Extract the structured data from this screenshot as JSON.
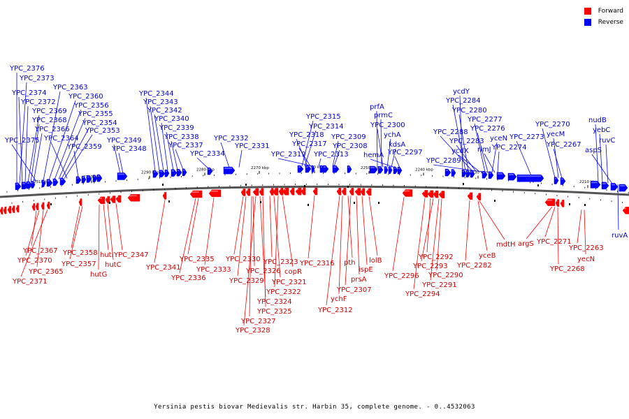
{
  "legend": {
    "forward_label": "Forward",
    "forward_color": "#ff0000",
    "reverse_label": "Reverse",
    "reverse_color": "#0000ff"
  },
  "caption": "Yersinia pestis biovar Medievalis str. Harbin 35, complete genome. - 0..4532063",
  "scale_ticks": [
    "2310 kbp",
    "2300 kbp",
    "2290 kbp",
    "2280 kbp",
    "2270 kbp",
    "2260 kbp",
    "2250 kbp",
    "2240 kbp",
    "2230 kbp",
    "2220 kbp",
    "2210 kbp"
  ],
  "reverse_genes": [
    "YPC_2376",
    "YPC_2373",
    "YPC_2374",
    "YPC_2372",
    "YPC_2369",
    "YPC_2368",
    "YPC_2366",
    "YPC_2375",
    "YPC_2363",
    "YPC_2360",
    "YPC_2356",
    "YPC_2355",
    "YPC_2354",
    "YPC_2353",
    "YPC_2364",
    "YPC_2359",
    "YPC_2349",
    "YPC_2348",
    "YPC_2344",
    "YPC_2343",
    "YPC_2342",
    "YPC_2340",
    "YPC_2339",
    "YPC_2338",
    "YPC_2337",
    "YPC_2334",
    "YPC_2332",
    "YPC_2331",
    "YPC_2315",
    "YPC_2314",
    "YPC_2318",
    "YPC_2317",
    "YPC_2319",
    "YPC_2313",
    "YPC_2309",
    "YPC_2308",
    "prfA",
    "prmC",
    "YPC_2300",
    "ychA",
    "kdsA",
    "hemA",
    "YPC_2297",
    "ycdY",
    "YPC_2284",
    "YPC_2280",
    "YPC_2288",
    "YPC_2283",
    "ycdX",
    "YPC_2289",
    "YPC_2277",
    "YPC_2276",
    "yceN",
    "rimJ",
    "YPC_2274",
    "YPC_2273",
    "YPC_2270",
    "yecM",
    "YPC_2267",
    "nudB",
    "yebC",
    "ruvC",
    "aspS",
    "ruvA"
  ],
  "forward_genes": [
    "YPC_2367",
    "YPC_2370",
    "YPC_2365",
    "YPC_2371",
    "YPC_2358",
    "YPC_2357",
    "hutG",
    "hutI",
    "hutC",
    "YPC_2347",
    "YPC_2341",
    "YPC_2336",
    "YPC_2335",
    "YPC_2333",
    "YPC_2330",
    "YPC_2329",
    "YPC_2326",
    "YPC_2327",
    "YPC_2328",
    "YPC_2324",
    "YPC_2325",
    "YPC_2323",
    "YPC_2321",
    "YPC_2322",
    "copR",
    "YPC_2316",
    "YPC_2312",
    "ychF",
    "pth",
    "YPC_2307",
    "prsA",
    "ispE",
    "lolB",
    "YPC_2296",
    "YPC_2294",
    "YPC_2292",
    "YPC_2293",
    "YPC_2291",
    "YPC_2290",
    "YPC_2282",
    "yceB",
    "mdtH",
    "argS",
    "YPC_2271",
    "YPC_2268",
    "YPC_2263",
    "yecN"
  ]
}
